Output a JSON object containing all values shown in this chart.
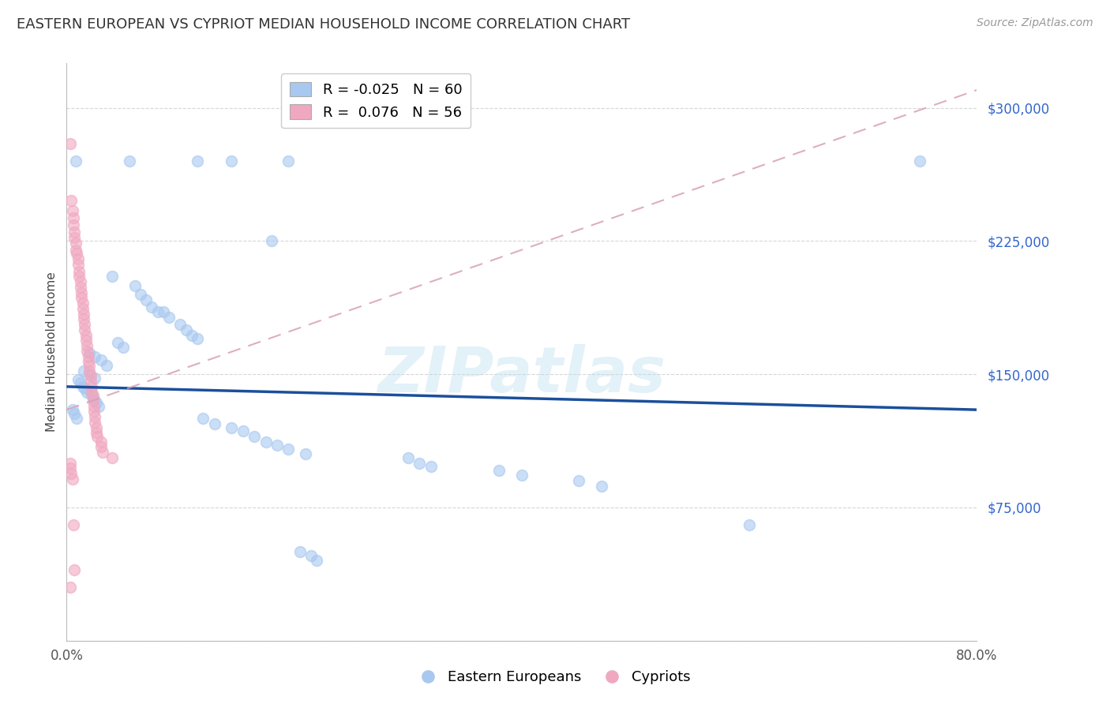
{
  "title": "EASTERN EUROPEAN VS CYPRIOT MEDIAN HOUSEHOLD INCOME CORRELATION CHART",
  "source": "Source: ZipAtlas.com",
  "ylabel": "Median Household Income",
  "watermark": "ZIPatlas",
  "background_color": "#ffffff",
  "xlim": [
    0.0,
    0.8
  ],
  "ylim": [
    0,
    325000
  ],
  "yticks": [
    0,
    75000,
    150000,
    225000,
    300000
  ],
  "ytick_labels": [
    "",
    "$75,000",
    "$150,000",
    "$225,000",
    "$300,000"
  ],
  "xticks": [
    0.0,
    0.1,
    0.2,
    0.3,
    0.4,
    0.5,
    0.6,
    0.7,
    0.8
  ],
  "xtick_labels": [
    "0.0%",
    "",
    "",
    "",
    "",
    "",
    "",
    "",
    "80.0%"
  ],
  "blue_color": "#A8C8F0",
  "pink_color": "#F0A8C0",
  "trendline_blue_color": "#1B4F9C",
  "trendline_pink_color": "#D8A0B8",
  "legend_blue_r": "-0.025",
  "legend_blue_n": "60",
  "legend_pink_r": "0.076",
  "legend_pink_n": "56",
  "title_fontsize": 13,
  "axis_label_fontsize": 11,
  "tick_fontsize": 12,
  "marker_size": 100,
  "blue_points": [
    [
      0.008,
      270000
    ],
    [
      0.055,
      270000
    ],
    [
      0.115,
      270000
    ],
    [
      0.145,
      270000
    ],
    [
      0.195,
      270000
    ],
    [
      0.75,
      270000
    ],
    [
      0.18,
      225000
    ],
    [
      0.04,
      205000
    ],
    [
      0.06,
      200000
    ],
    [
      0.065,
      195000
    ],
    [
      0.07,
      192000
    ],
    [
      0.075,
      188000
    ],
    [
      0.08,
      185000
    ],
    [
      0.085,
      185000
    ],
    [
      0.09,
      182000
    ],
    [
      0.1,
      178000
    ],
    [
      0.105,
      175000
    ],
    [
      0.11,
      172000
    ],
    [
      0.115,
      170000
    ],
    [
      0.045,
      168000
    ],
    [
      0.05,
      165000
    ],
    [
      0.02,
      162000
    ],
    [
      0.025,
      160000
    ],
    [
      0.03,
      158000
    ],
    [
      0.035,
      155000
    ],
    [
      0.015,
      152000
    ],
    [
      0.02,
      150000
    ],
    [
      0.025,
      148000
    ],
    [
      0.01,
      147000
    ],
    [
      0.012,
      145000
    ],
    [
      0.014,
      143000
    ],
    [
      0.016,
      142000
    ],
    [
      0.018,
      140000
    ],
    [
      0.022,
      138000
    ],
    [
      0.024,
      136000
    ],
    [
      0.026,
      134000
    ],
    [
      0.028,
      132000
    ],
    [
      0.005,
      130000
    ],
    [
      0.007,
      128000
    ],
    [
      0.009,
      125000
    ],
    [
      0.12,
      125000
    ],
    [
      0.13,
      122000
    ],
    [
      0.145,
      120000
    ],
    [
      0.155,
      118000
    ],
    [
      0.165,
      115000
    ],
    [
      0.175,
      112000
    ],
    [
      0.185,
      110000
    ],
    [
      0.195,
      108000
    ],
    [
      0.21,
      105000
    ],
    [
      0.3,
      103000
    ],
    [
      0.31,
      100000
    ],
    [
      0.32,
      98000
    ],
    [
      0.38,
      96000
    ],
    [
      0.4,
      93000
    ],
    [
      0.45,
      90000
    ],
    [
      0.47,
      87000
    ],
    [
      0.6,
      65000
    ],
    [
      0.205,
      50000
    ],
    [
      0.215,
      48000
    ],
    [
      0.22,
      45000
    ]
  ],
  "pink_points": [
    [
      0.003,
      280000
    ],
    [
      0.004,
      248000
    ],
    [
      0.005,
      242000
    ],
    [
      0.006,
      238000
    ],
    [
      0.006,
      234000
    ],
    [
      0.007,
      230000
    ],
    [
      0.007,
      227000
    ],
    [
      0.008,
      224000
    ],
    [
      0.008,
      220000
    ],
    [
      0.009,
      218000
    ],
    [
      0.01,
      215000
    ],
    [
      0.01,
      212000
    ],
    [
      0.011,
      208000
    ],
    [
      0.011,
      205000
    ],
    [
      0.012,
      202000
    ],
    [
      0.012,
      199000
    ],
    [
      0.013,
      196000
    ],
    [
      0.013,
      193000
    ],
    [
      0.014,
      190000
    ],
    [
      0.014,
      187000
    ],
    [
      0.015,
      184000
    ],
    [
      0.015,
      181000
    ],
    [
      0.016,
      178000
    ],
    [
      0.016,
      175000
    ],
    [
      0.017,
      172000
    ],
    [
      0.017,
      169000
    ],
    [
      0.018,
      166000
    ],
    [
      0.018,
      163000
    ],
    [
      0.019,
      160000
    ],
    [
      0.019,
      157000
    ],
    [
      0.02,
      155000
    ],
    [
      0.02,
      152000
    ],
    [
      0.021,
      149000
    ],
    [
      0.021,
      146000
    ],
    [
      0.022,
      143000
    ],
    [
      0.022,
      140000
    ],
    [
      0.023,
      138000
    ],
    [
      0.023,
      135000
    ],
    [
      0.024,
      132000
    ],
    [
      0.024,
      129000
    ],
    [
      0.025,
      126000
    ],
    [
      0.025,
      123000
    ],
    [
      0.026,
      120000
    ],
    [
      0.026,
      117000
    ],
    [
      0.027,
      115000
    ],
    [
      0.03,
      112000
    ],
    [
      0.03,
      109000
    ],
    [
      0.032,
      106000
    ],
    [
      0.04,
      103000
    ],
    [
      0.003,
      100000
    ],
    [
      0.003,
      97000
    ],
    [
      0.004,
      94000
    ],
    [
      0.005,
      91000
    ],
    [
      0.006,
      65000
    ],
    [
      0.007,
      40000
    ],
    [
      0.003,
      30000
    ]
  ]
}
